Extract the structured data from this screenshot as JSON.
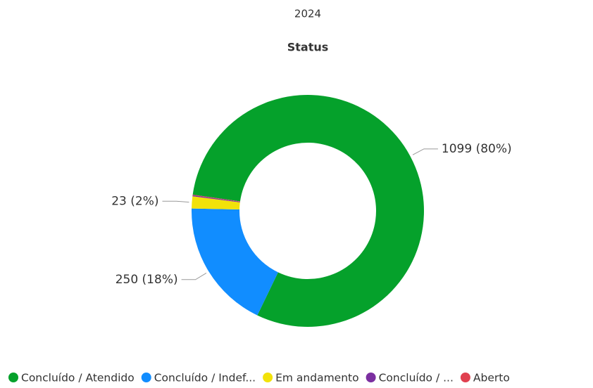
{
  "chart_data": {
    "type": "donut",
    "subtitle": "2024",
    "title": "Status",
    "categories": [
      "Concluído / Atendido",
      "Concluído / Indef...",
      "Em andamento",
      "Concluído / ...",
      "Aberto"
    ],
    "values": [
      1099,
      250,
      23,
      2,
      1
    ],
    "value_labels": [
      "1099 (80%)",
      "250 (18%)",
      "23 (2%)",
      null,
      null
    ],
    "colors": [
      "#05a12b",
      "#118dff",
      "#f2e20a",
      "#7b2fa0",
      "#e0404f"
    ],
    "legend": "bottom"
  }
}
